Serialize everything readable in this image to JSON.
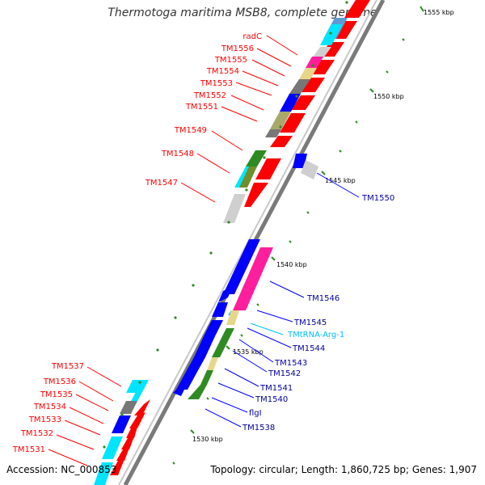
{
  "title": "Thermotoga maritima MSB8, complete genome",
  "accession_text": "Accession: NC_000853",
  "summary_text": "Topology: circular; Length: 1,860,725 bp; Genes: 1,907",
  "colors": {
    "red": "#ff0000",
    "blue": "#0000ff",
    "navy": "#00008b",
    "cyan": "#00e5ff",
    "pink": "#ff1e9b",
    "khaki": "#e6d68a",
    "olive": "#a8a86a",
    "green": "#2e8b22",
    "grey": "#777777",
    "lightgrey": "#cfcfcf",
    "steelblue": "#5b9bd5",
    "darkred": "#c00000",
    "trna": "#00c0ff"
  },
  "scale_labels": [
    "1555 kbp",
    "1550 kbp",
    "1545 kbp",
    "1540 kbp",
    "1535 kbp",
    "1530 kbp"
  ],
  "left_labels": [
    "radC",
    "TM1556",
    "TM1555",
    "TM1554",
    "TM1553",
    "TM1552",
    "TM1551",
    "TM1549",
    "TM1548",
    "TM1547",
    "TM1537",
    "TM1536",
    "TM1535",
    "TM1534",
    "TM1533",
    "TM1532",
    "TM1531"
  ],
  "right_labels": [
    "TM1550",
    "TM1546",
    "TM1545",
    "TMtRNA-Arg-1",
    "TM1544",
    "TM1543",
    "TM1542",
    "TM1541",
    "TM1540",
    "flgI",
    "TM1538"
  ]
}
